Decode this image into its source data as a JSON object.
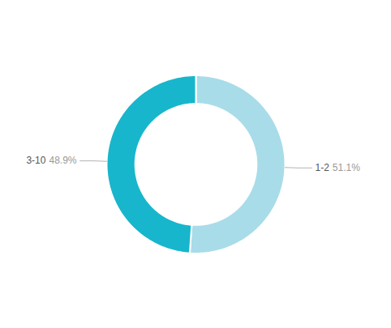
{
  "chart_data": {
    "type": "donut",
    "categories": [
      "1-2",
      "3-10"
    ],
    "values": [
      51.1,
      48.9
    ],
    "value_labels": [
      "51.1%",
      "48.9%"
    ],
    "colors": [
      "#a8dce9",
      "#17b6cc"
    ],
    "data_labels": true
  }
}
